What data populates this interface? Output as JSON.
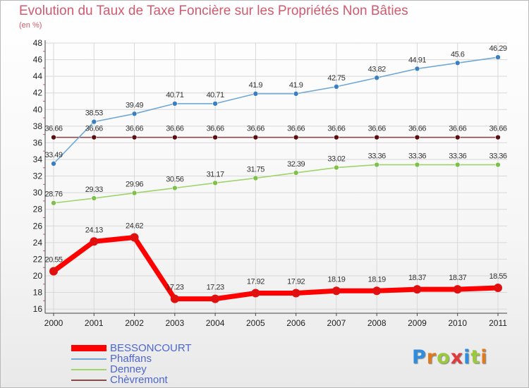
{
  "header": {
    "title": "Evolution du Taux de Taxe Foncière sur les Propriétés Non Bâties",
    "unit": "(en %)"
  },
  "logo": {
    "text": "Proxiti"
  },
  "colors": {
    "title": "#d05a6e",
    "legend_text": "#4d66cc",
    "grid": "#d8d8d8",
    "axis": "#444444",
    "series": [
      "#ff0000",
      "#6fa8d6",
      "#9ed46a",
      "#8a4a4a"
    ],
    "markers": [
      "#e01010",
      "#3c7fc0",
      "#7ec04a",
      "#5a1010"
    ],
    "logo": [
      "#2f8de0",
      "#e07a1f",
      "#9cc93b",
      "#e03a3a",
      "#2f8de0",
      "#9cc93b",
      "#e07a1f"
    ]
  },
  "chart_data": {
    "type": "line",
    "title": "Evolution du Taux de Taxe Foncière sur les Propriétés Non Bâties",
    "ylabel": "(en %)",
    "xlabel": "",
    "categories": [
      "2000",
      "2001",
      "2002",
      "2003",
      "2004",
      "2005",
      "2006",
      "2007",
      "2008",
      "2009",
      "2010",
      "2011"
    ],
    "ylim": [
      15.5,
      48
    ],
    "yticks": [
      16,
      18,
      20,
      22,
      24,
      26,
      28,
      30,
      32,
      34,
      36,
      38,
      40,
      42,
      44,
      46,
      48
    ],
    "grid": true,
    "legend_position": "bottom-left",
    "series": [
      {
        "name": "BESSONCOURT",
        "values": [
          20.55,
          24.13,
          24.62,
          17.23,
          17.23,
          17.92,
          17.92,
          18.19,
          18.19,
          18.37,
          18.37,
          18.55
        ],
        "labels": [
          "20.55",
          "24.13",
          "24.62",
          "17.23",
          "17.23",
          "17.92",
          "17.92",
          "18.19",
          "18.19",
          "18.37",
          "18.37",
          "18.55"
        ]
      },
      {
        "name": "Phaffans",
        "values": [
          33.49,
          38.53,
          39.49,
          40.71,
          40.71,
          41.9,
          41.9,
          42.75,
          43.82,
          44.91,
          45.6,
          46.29
        ],
        "labels": [
          "33.49",
          "38.53",
          "39.49",
          "40.71",
          "40.71",
          "41.9",
          "41.9",
          "42.75",
          "43.82",
          "44.91",
          "45.6",
          "46.29"
        ]
      },
      {
        "name": "Denney",
        "values": [
          28.76,
          29.33,
          29.96,
          30.56,
          31.17,
          31.75,
          32.39,
          33.02,
          33.36,
          33.36,
          33.36,
          33.36
        ],
        "labels": [
          "28.76",
          "29.33",
          "29.96",
          "30.56",
          "31.17",
          "31.75",
          "32.39",
          "33.02",
          "33.36",
          "33.36",
          "33.36",
          "33.36"
        ]
      },
      {
        "name": "Chèvremont",
        "values": [
          36.66,
          36.66,
          36.66,
          36.66,
          36.66,
          36.66,
          36.66,
          36.66,
          36.66,
          36.66,
          36.66,
          36.66
        ],
        "labels": [
          "36.66",
          "36.66",
          "36.66",
          "36.66",
          "36.66",
          "36.66",
          "36.66",
          "36.66",
          "36.66",
          "36.66",
          "36.66",
          "36.66"
        ]
      }
    ]
  }
}
